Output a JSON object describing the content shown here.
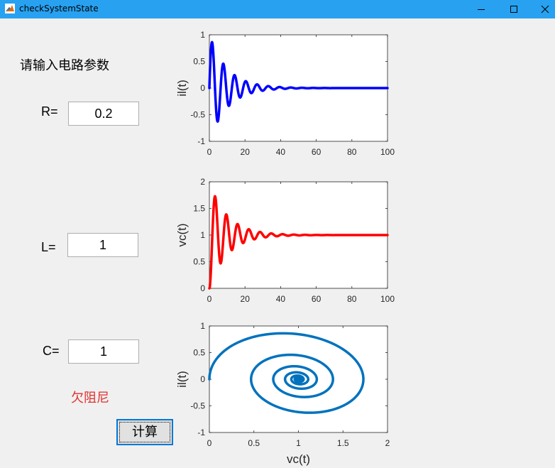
{
  "window": {
    "title": "checkSystemState",
    "icon": "matlab-icon"
  },
  "form": {
    "prompt": "请输入电路参数",
    "r_label": "R=",
    "r_value": "0.2",
    "l_label": "L=",
    "l_value": "1",
    "c_label": "C=",
    "c_value": "1",
    "status": "欠阻尼",
    "status_color": "#e03030",
    "calc_button": "计算"
  },
  "chart_data": [
    {
      "type": "line",
      "ylabel": "il(t)",
      "xlabel": "",
      "xlim": [
        0,
        100
      ],
      "ylim": [
        -1,
        1
      ],
      "xticks": [
        "0",
        "20",
        "40",
        "60",
        "80",
        "100"
      ],
      "yticks": [
        "1",
        "0.5",
        "0",
        "-0.5",
        "-1"
      ],
      "color": "#0000ff",
      "series": [
        {
          "function": "il(t) = (1/ωd)·e^(-0.1t)·sin(ωd·t), ωd = √0.99",
          "x_range": [
            0,
            100
          ]
        }
      ]
    },
    {
      "type": "line",
      "ylabel": "vc(t)",
      "xlabel": "",
      "xlim": [
        0,
        100
      ],
      "ylim": [
        0,
        2
      ],
      "xticks": [
        "0",
        "20",
        "40",
        "60",
        "80",
        "100"
      ],
      "yticks": [
        "2",
        "1.5",
        "1",
        "0.5",
        "0"
      ],
      "color": "#ff0000",
      "series": [
        {
          "function": "vc(t) = 1 − e^(-0.1t)·(cos(ωd·t) + (0.1/ωd)·sin(ωd·t))",
          "x_range": [
            0,
            100
          ]
        }
      ]
    },
    {
      "type": "line",
      "ylabel": "il(t)",
      "xlabel": "vc(t)",
      "xlim": [
        0,
        2
      ],
      "ylim": [
        -1,
        1
      ],
      "xticks": [
        "0",
        "0.5",
        "1",
        "1.5",
        "2"
      ],
      "yticks": [
        "1",
        "0.5",
        "0",
        "-0.5",
        "-1"
      ],
      "color": "#0072bd",
      "series": [
        {
          "function": "phase portrait: x = vc(t), y = il(t)",
          "x_range": [
            0,
            2
          ]
        }
      ]
    }
  ]
}
